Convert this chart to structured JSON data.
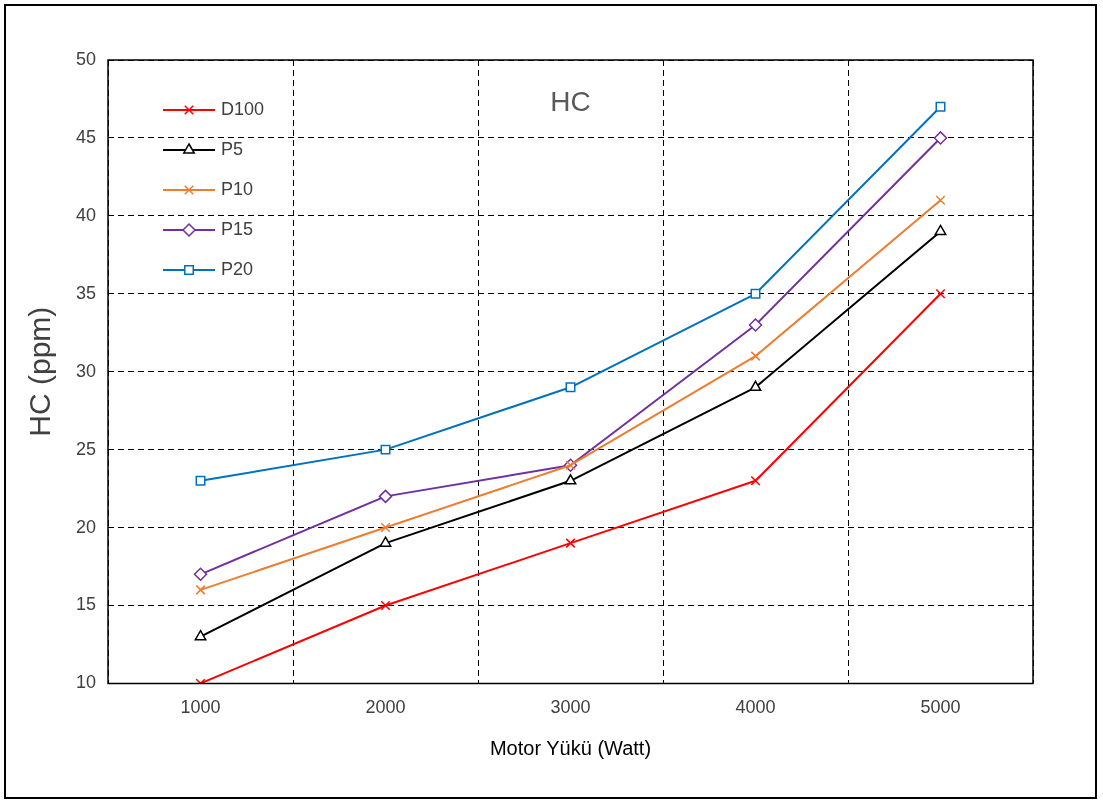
{
  "chart_data": {
    "type": "line",
    "title": "HC",
    "xlabel": "Motor Yükü (Watt)",
    "ylabel": "HC (ppm)",
    "categories": [
      "1000",
      "2000",
      "3000",
      "4000",
      "5000"
    ],
    "series": [
      {
        "name": "D100",
        "color": "#ff0000",
        "marker": "cross",
        "values": [
          10,
          15,
          19,
          23,
          35
        ]
      },
      {
        "name": "P5",
        "color": "#000000",
        "marker": "triangle",
        "values": [
          13,
          19,
          23,
          29,
          39
        ]
      },
      {
        "name": "P10",
        "color": "#ed7d31",
        "marker": "cross",
        "values": [
          16,
          20,
          24,
          31,
          41
        ]
      },
      {
        "name": "P15",
        "color": "#7030a0",
        "marker": "diamond",
        "values": [
          17,
          22,
          24,
          33,
          45
        ]
      },
      {
        "name": "P20",
        "color": "#0070c0",
        "marker": "square",
        "values": [
          23,
          25,
          29,
          35,
          47
        ]
      }
    ],
    "ylim": [
      10,
      50
    ],
    "yticks": [
      10,
      15,
      20,
      25,
      30,
      35,
      40,
      45,
      50
    ],
    "grid": true,
    "legend": "top left",
    "line_style": "solid"
  }
}
